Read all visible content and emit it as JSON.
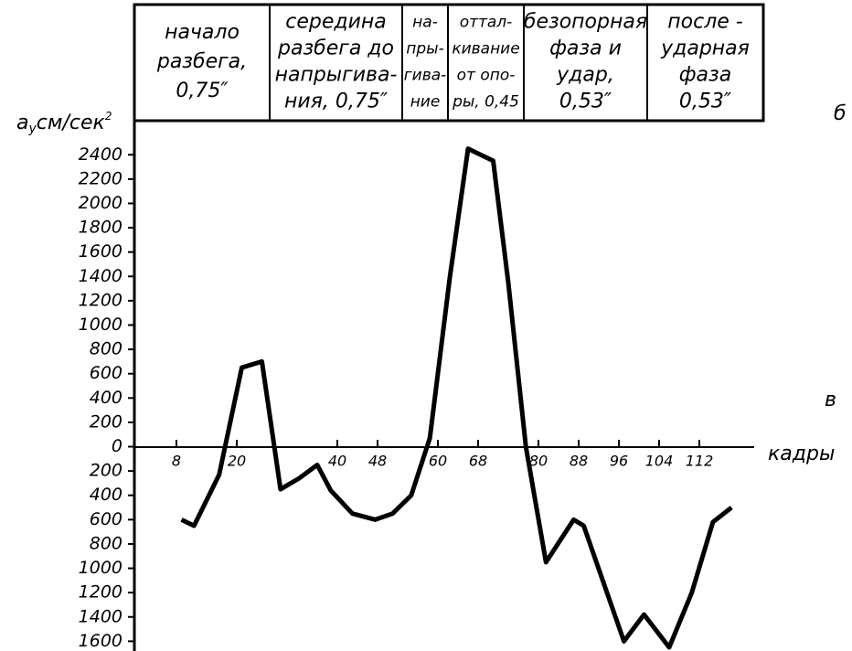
{
  "chart_data": {
    "type": "line",
    "phases": [
      {
        "lines": [
          "начало",
          "разбега,",
          "0,75″"
        ]
      },
      {
        "lines": [
          "середина",
          "разбега до",
          "напрыгива-",
          "ния, 0,75″"
        ]
      },
      {
        "lines": [
          "на-",
          "пры-",
          "гива-",
          "ние"
        ]
      },
      {
        "lines": [
          "оттал-",
          "кивание",
          "от опо-",
          "ры, 0,45"
        ]
      },
      {
        "lines": [
          "безопорная",
          "фаза и",
          "удар,",
          "0,53″"
        ]
      },
      {
        "lines": [
          "после -",
          "ударная",
          "фаза",
          "0,53″"
        ]
      }
    ],
    "y_label": {
      "main": "a",
      "sub": "y",
      "rest": "см/сек",
      "sup": "2"
    },
    "x_label": "кадры",
    "panel_labels": [
      "б",
      "в"
    ],
    "x": [
      9,
      11.5,
      16.5,
      21,
      25,
      28.7,
      32.4,
      36,
      38.7,
      43,
      47.5,
      51,
      54.7,
      58.4,
      62.4,
      66,
      71,
      74,
      77.5,
      81.5,
      87,
      89,
      97,
      101,
      106,
      110.5,
      114.7,
      118.4
    ],
    "series": [
      {
        "color": "#000000",
        "values": [
          -600,
          -650,
          -230,
          650,
          700,
          -350,
          -260,
          -150,
          -360,
          -550,
          -600,
          -550,
          -400,
          70,
          1400,
          2450,
          2350,
          1350,
          0,
          -950,
          -600,
          -650,
          -1600,
          -1380,
          -1650,
          -1200,
          -620,
          -500
        ]
      }
    ],
    "xlim": [
      0,
      124
    ],
    "xticks": [
      8,
      20,
      40,
      48,
      60,
      68,
      80,
      88,
      96,
      104,
      112
    ],
    "ylim": [
      -1680,
      2620
    ],
    "yticks": [
      2400,
      2200,
      2000,
      1800,
      1600,
      1400,
      1200,
      1000,
      800,
      600,
      400,
      200,
      0,
      {
        "value": -200,
        "label": "200"
      },
      {
        "value": -400,
        "label": "400"
      },
      {
        "value": -600,
        "label": "600"
      },
      {
        "value": -800,
        "label": "800"
      },
      {
        "value": -1000,
        "label": "1000"
      },
      {
        "value": -1200,
        "label": "1200"
      },
      {
        "value": -1400,
        "label": "1400"
      },
      {
        "value": -1600,
        "label": "1600"
      }
    ]
  }
}
